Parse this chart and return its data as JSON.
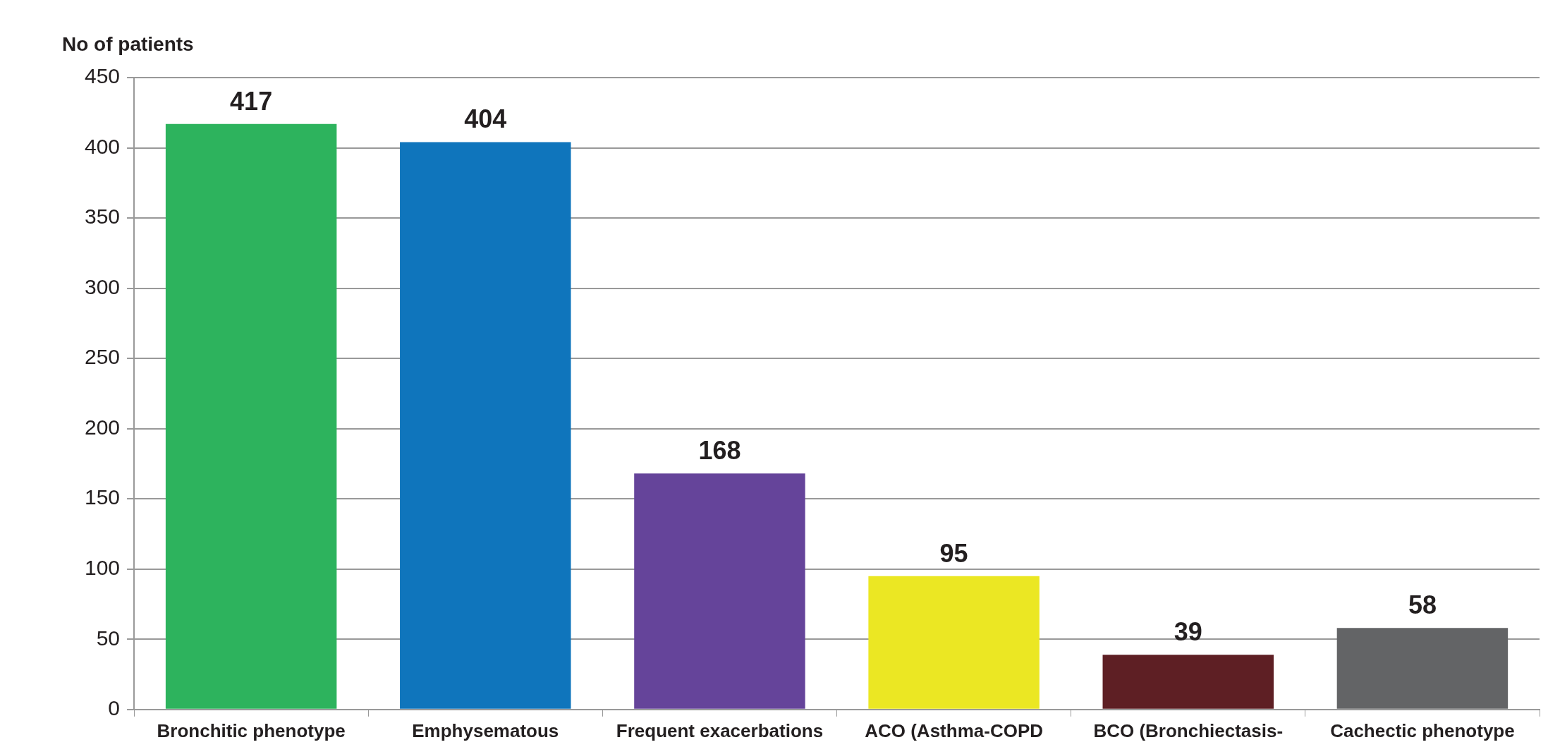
{
  "chart_data": {
    "type": "bar",
    "ylabel": "No of patients",
    "categories": [
      "Bronchitic phenotype",
      "Emphysematous",
      "Frequent exacerbations",
      "ACO (Asthma-COPD",
      "BCO (Bronchiectasis-",
      "Cachectic phenotype"
    ],
    "values": [
      417,
      404,
      168,
      95,
      39,
      58
    ],
    "colors": [
      "#2db35d",
      "#0f75bc",
      "#65449a",
      "#ebe723",
      "#5e1f24",
      "#636466"
    ],
    "ylim": [
      0,
      450
    ],
    "yticks": [
      0,
      50,
      100,
      150,
      200,
      250,
      300,
      350,
      400,
      450
    ],
    "grid": "y",
    "data_labels": true,
    "legend": false
  }
}
